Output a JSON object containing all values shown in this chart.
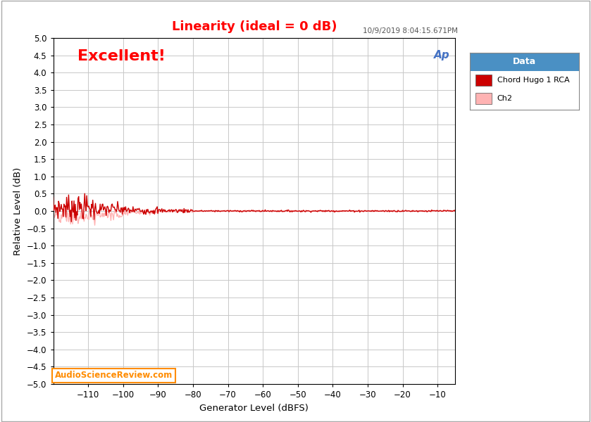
{
  "title": "Linearity (ideal = 0 dB)",
  "title_color": "#FF0000",
  "xlabel": "Generator Level (dBFS)",
  "ylabel": "Relative Level (dB)",
  "xlim": [
    -120,
    -5
  ],
  "ylim": [
    -5.0,
    5.0
  ],
  "xticks": [
    -110,
    -100,
    -90,
    -80,
    -70,
    -60,
    -50,
    -40,
    -30,
    -20,
    -10
  ],
  "yticks": [
    -5.0,
    -4.5,
    -4.0,
    -3.5,
    -3.0,
    -2.5,
    -2.0,
    -1.5,
    -1.0,
    -0.5,
    0.0,
    0.5,
    1.0,
    1.5,
    2.0,
    2.5,
    3.0,
    3.5,
    4.0,
    4.5,
    5.0
  ],
  "ch1_color": "#CC0000",
  "ch2_color": "#FFB3B3",
  "legend_title": "Data",
  "legend_title_bg": "#4A90C4",
  "legend_ch1_label": "Chord Hugo 1 RCA",
  "legend_ch2_label": "Ch2",
  "annotation_text": "Excellent!",
  "annotation_color": "#FF0000",
  "annotation_fontsize": 16,
  "timestamp": "10/9/2019 8:04:15.671PM",
  "timestamp_color": "#555555",
  "watermark": "AudioScienceReview.com",
  "watermark_color": "#FF8C00",
  "bg_color": "#FFFFFF",
  "plot_bg_color": "#FFFFFF",
  "grid_color": "#C8C8C8",
  "border_color": "#000000",
  "ap_logo_color": "#4472C4"
}
